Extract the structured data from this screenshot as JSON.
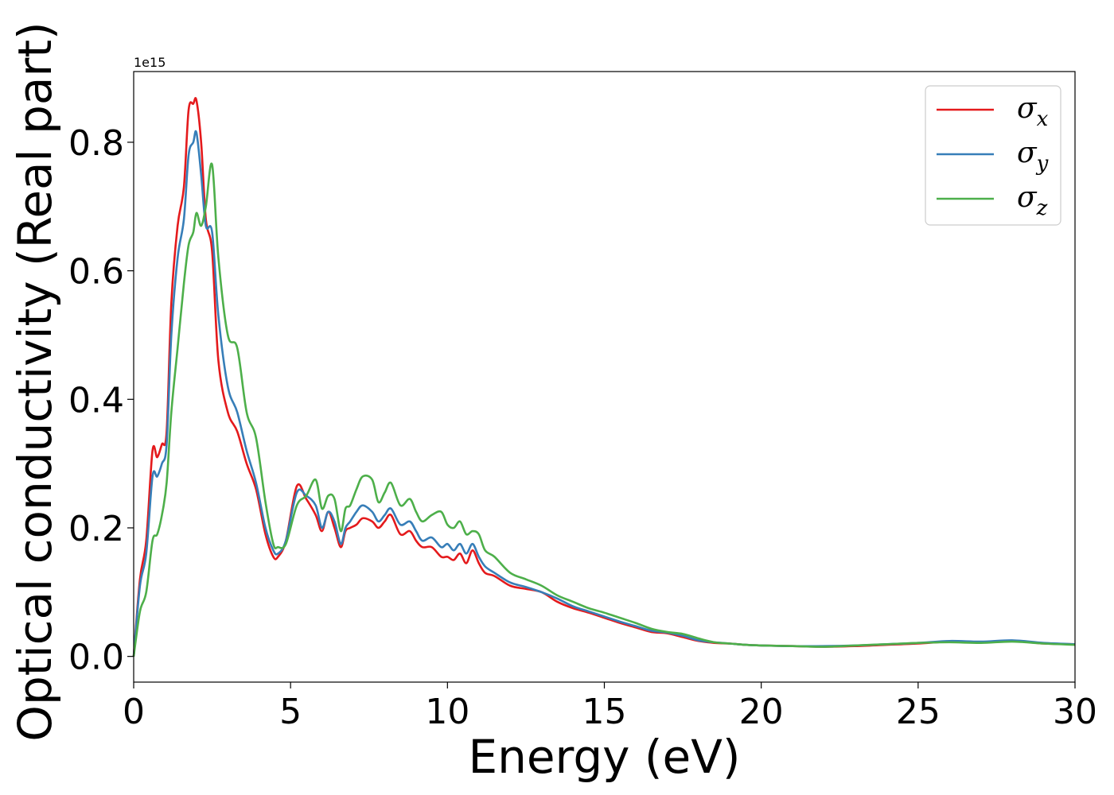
{
  "chart_data": {
    "type": "line",
    "title": "",
    "xlabel": "Energy (eV)",
    "ylabel": "Optical conductivity (Real part)",
    "y_offset_label": "1e15",
    "xlim": [
      0,
      30
    ],
    "ylim": [
      -0.04,
      0.91
    ],
    "x_ticks": [
      0,
      5,
      10,
      15,
      20,
      25,
      30
    ],
    "x_tick_labels": [
      "0",
      "5",
      "10",
      "15",
      "20",
      "25",
      "30"
    ],
    "y_ticks": [
      0.0,
      0.2,
      0.4,
      0.6,
      0.8
    ],
    "y_tick_labels": [
      "0.0",
      "0.2",
      "0.4",
      "0.6",
      "0.8"
    ],
    "grid": false,
    "legend_position": "top-right",
    "series": [
      {
        "name": "σx",
        "legend_base": "σ",
        "legend_sub": "x",
        "color": "#e41a1c",
        "x": [
          0,
          0.2,
          0.4,
          0.6,
          0.75,
          0.9,
          1.05,
          1.2,
          1.4,
          1.6,
          1.75,
          1.9,
          2.0,
          2.15,
          2.3,
          2.5,
          2.7,
          3.0,
          3.3,
          3.6,
          3.9,
          4.2,
          4.45,
          4.6,
          4.85,
          5.2,
          5.5,
          5.8,
          6.0,
          6.2,
          6.4,
          6.6,
          6.75,
          6.9,
          7.1,
          7.3,
          7.6,
          7.8,
          8.0,
          8.2,
          8.5,
          8.8,
          9.0,
          9.2,
          9.5,
          9.8,
          10.0,
          10.2,
          10.4,
          10.6,
          10.8,
          11.0,
          11.2,
          11.5,
          12.0,
          12.5,
          13.0,
          13.5,
          14.0,
          14.5,
          15.0,
          15.5,
          16.0,
          16.5,
          17.0,
          17.5,
          18.0,
          18.5,
          19.0,
          19.5,
          20.0,
          21.0,
          22.0,
          23.0,
          24.0,
          25.0,
          26.0,
          27.0,
          28.0,
          29.0,
          30.0
        ],
        "y": [
          0.0,
          0.12,
          0.18,
          0.32,
          0.31,
          0.33,
          0.35,
          0.55,
          0.67,
          0.73,
          0.85,
          0.86,
          0.865,
          0.8,
          0.68,
          0.63,
          0.46,
          0.38,
          0.35,
          0.3,
          0.26,
          0.19,
          0.155,
          0.155,
          0.18,
          0.265,
          0.245,
          0.22,
          0.195,
          0.225,
          0.2,
          0.17,
          0.195,
          0.2,
          0.205,
          0.215,
          0.21,
          0.2,
          0.21,
          0.22,
          0.19,
          0.195,
          0.18,
          0.17,
          0.17,
          0.155,
          0.155,
          0.15,
          0.16,
          0.145,
          0.165,
          0.145,
          0.13,
          0.125,
          0.11,
          0.105,
          0.1,
          0.085,
          0.075,
          0.068,
          0.06,
          0.052,
          0.045,
          0.038,
          0.036,
          0.03,
          0.024,
          0.021,
          0.02,
          0.018,
          0.017,
          0.016,
          0.015,
          0.016,
          0.018,
          0.02,
          0.023,
          0.022,
          0.024,
          0.02,
          0.019
        ]
      },
      {
        "name": "σy",
        "legend_base": "σ",
        "legend_sub": "y",
        "color": "#377eb8",
        "x": [
          0,
          0.2,
          0.4,
          0.6,
          0.75,
          0.9,
          1.05,
          1.2,
          1.4,
          1.6,
          1.75,
          1.9,
          2.0,
          2.15,
          2.3,
          2.5,
          2.7,
          3.0,
          3.3,
          3.6,
          3.9,
          4.2,
          4.45,
          4.6,
          4.85,
          5.2,
          5.5,
          5.8,
          6.0,
          6.2,
          6.4,
          6.6,
          6.75,
          6.9,
          7.1,
          7.3,
          7.6,
          7.8,
          8.0,
          8.2,
          8.5,
          8.8,
          9.0,
          9.2,
          9.5,
          9.8,
          10.0,
          10.2,
          10.4,
          10.6,
          10.8,
          11.0,
          11.2,
          11.5,
          12.0,
          12.5,
          13.0,
          13.5,
          14.0,
          14.5,
          15.0,
          15.5,
          16.0,
          16.5,
          17.0,
          17.5,
          18.0,
          18.5,
          19.0,
          19.5,
          20.0,
          21.0,
          22.0,
          23.0,
          24.0,
          25.0,
          26.0,
          27.0,
          28.0,
          29.0,
          30.0
        ],
        "y": [
          0.0,
          0.11,
          0.16,
          0.28,
          0.28,
          0.3,
          0.33,
          0.5,
          0.62,
          0.68,
          0.78,
          0.8,
          0.815,
          0.75,
          0.67,
          0.66,
          0.53,
          0.42,
          0.38,
          0.32,
          0.27,
          0.2,
          0.165,
          0.16,
          0.18,
          0.255,
          0.25,
          0.235,
          0.2,
          0.225,
          0.21,
          0.175,
          0.2,
          0.21,
          0.225,
          0.235,
          0.225,
          0.21,
          0.22,
          0.23,
          0.205,
          0.21,
          0.195,
          0.18,
          0.185,
          0.17,
          0.175,
          0.165,
          0.175,
          0.16,
          0.175,
          0.155,
          0.14,
          0.13,
          0.115,
          0.108,
          0.1,
          0.09,
          0.078,
          0.07,
          0.062,
          0.054,
          0.047,
          0.04,
          0.037,
          0.032,
          0.025,
          0.022,
          0.02,
          0.018,
          0.017,
          0.016,
          0.016,
          0.017,
          0.019,
          0.021,
          0.024,
          0.023,
          0.025,
          0.021,
          0.019
        ]
      },
      {
        "name": "σz",
        "legend_base": "σ",
        "legend_sub": "z",
        "color": "#4daf4a",
        "x": [
          0,
          0.2,
          0.4,
          0.6,
          0.75,
          0.9,
          1.05,
          1.2,
          1.4,
          1.6,
          1.75,
          1.9,
          2.0,
          2.15,
          2.3,
          2.5,
          2.7,
          3.0,
          3.3,
          3.6,
          3.9,
          4.2,
          4.45,
          4.6,
          4.85,
          5.2,
          5.5,
          5.8,
          6.0,
          6.2,
          6.4,
          6.6,
          6.75,
          6.9,
          7.1,
          7.3,
          7.6,
          7.8,
          8.0,
          8.2,
          8.5,
          8.8,
          9.0,
          9.2,
          9.5,
          9.8,
          10.0,
          10.2,
          10.4,
          10.6,
          10.8,
          11.0,
          11.2,
          11.5,
          12.0,
          12.5,
          13.0,
          13.5,
          14.0,
          14.5,
          15.0,
          15.5,
          16.0,
          16.5,
          17.0,
          17.5,
          18.0,
          18.5,
          19.0,
          19.5,
          20.0,
          21.0,
          22.0,
          23.0,
          24.0,
          25.0,
          26.0,
          27.0,
          28.0,
          29.0,
          30.0
        ],
        "y": [
          0.0,
          0.07,
          0.1,
          0.18,
          0.19,
          0.22,
          0.27,
          0.38,
          0.48,
          0.58,
          0.64,
          0.66,
          0.69,
          0.67,
          0.7,
          0.765,
          0.62,
          0.5,
          0.48,
          0.38,
          0.34,
          0.24,
          0.175,
          0.17,
          0.175,
          0.235,
          0.25,
          0.275,
          0.23,
          0.25,
          0.245,
          0.195,
          0.23,
          0.235,
          0.26,
          0.28,
          0.275,
          0.24,
          0.255,
          0.27,
          0.235,
          0.245,
          0.225,
          0.21,
          0.22,
          0.225,
          0.205,
          0.2,
          0.21,
          0.19,
          0.195,
          0.19,
          0.165,
          0.155,
          0.13,
          0.12,
          0.11,
          0.095,
          0.085,
          0.075,
          0.068,
          0.06,
          0.052,
          0.043,
          0.038,
          0.035,
          0.028,
          0.022,
          0.02,
          0.018,
          0.017,
          0.016,
          0.015,
          0.017,
          0.019,
          0.021,
          0.022,
          0.021,
          0.023,
          0.02,
          0.018
        ]
      }
    ]
  }
}
